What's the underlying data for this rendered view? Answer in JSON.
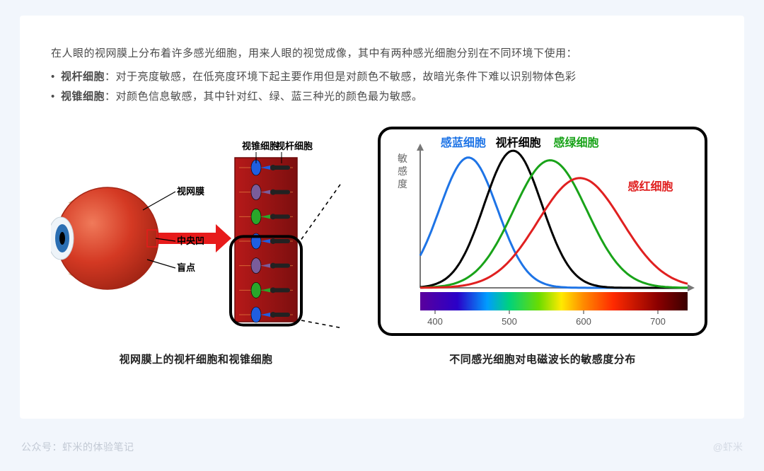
{
  "intro": "在人眼的视网膜上分布着许多感光细胞，用来人眼的视觉成像，其中有两种感光细胞分别在不同环境下使用：",
  "bullets": [
    {
      "name": "视杆细胞",
      "desc": "：对于亮度敏感，在低亮度环境下起主要作用但是对颜色不敏感，故暗光条件下难以识别物体色彩"
    },
    {
      "name": "视锥细胞",
      "desc": "：对颜色信息敏感，其中针对红、绿、蓝三种光的颜色最为敏感。"
    }
  ],
  "eye_diagram": {
    "labels": {
      "cone_cell": "视锥细胞",
      "rod_cell": "视杆细胞",
      "retina": "视网膜",
      "fovea": "中央凹",
      "blind_spot": "盲点"
    },
    "label_fontsize": 13,
    "label_fontweight": 700,
    "eye_colors": {
      "body_fill": "#d43923",
      "body_dark": "#a32515",
      "iris": "#2b6fb3",
      "pupil": "#000000",
      "sclera": "#f5e2c8",
      "sclera_shadow": "#d6c19b"
    },
    "arrow_color": "#e71b1b",
    "retina_strip": {
      "bg": "#b61919",
      "bg2": "#7d0f0f",
      "border": "#6e0b0b",
      "cone_colors": [
        "#1f5ee0",
        "#7a5c9a",
        "#2aa62a"
      ],
      "rod_color": "#222"
    },
    "callout_border": "#000000",
    "callout_border_width": 4,
    "callout_radius": 18
  },
  "sensitivity_chart": {
    "type": "line",
    "panel_border": "#000000",
    "panel_border_width": 4,
    "panel_radius": 18,
    "background": "#ffffff",
    "axis_color": "#777777",
    "axis_width": 2,
    "ylabel": "敏感度",
    "ylabel_fontsize": 14,
    "ylabel_color": "#666666",
    "xlim": [
      380,
      740
    ],
    "xticks": [
      400,
      500,
      600,
      700
    ],
    "xtick_fontsize": 13,
    "xtick_color": "#555555",
    "series_labels": {
      "blue": "感蓝细胞",
      "rod": "视杆细胞",
      "green": "感绿细胞",
      "red": "感红细胞"
    },
    "label_fontsize": 16,
    "label_fontweight": 700,
    "curves": [
      {
        "name": "blue",
        "color": "#1e74e6",
        "peak_x": 445,
        "half_width": 55,
        "amp": 0.95,
        "line_width": 3
      },
      {
        "name": "rod",
        "color": "#000000",
        "peak_x": 505,
        "half_width": 55,
        "amp": 1.0,
        "line_width": 3
      },
      {
        "name": "green",
        "color": "#19a319",
        "peak_x": 555,
        "half_width": 70,
        "amp": 0.93,
        "line_width": 3
      },
      {
        "name": "red",
        "color": "#e02020",
        "peak_x": 595,
        "half_width": 80,
        "amp": 0.8,
        "line_width": 3
      }
    ],
    "spectrum_bar": {
      "height": 26,
      "stops": [
        {
          "nm": 380,
          "color": "#5a009c"
        },
        {
          "nm": 430,
          "color": "#2a00c8"
        },
        {
          "nm": 470,
          "color": "#009cff"
        },
        {
          "nm": 500,
          "color": "#00d27d"
        },
        {
          "nm": 540,
          "color": "#6bdc00"
        },
        {
          "nm": 570,
          "color": "#ffea00"
        },
        {
          "nm": 600,
          "color": "#ff8a00"
        },
        {
          "nm": 640,
          "color": "#ff2a00"
        },
        {
          "nm": 700,
          "color": "#8a0000"
        },
        {
          "nm": 740,
          "color": "#3a0000"
        }
      ]
    }
  },
  "captions": {
    "left": "视网膜上的视杆细胞和视锥细胞",
    "right": "不同感光细胞对电磁波长的敏感度分布"
  },
  "footer": {
    "left_label": "公众号：",
    "left_value": "虾米的体验笔记",
    "right": "@虾米"
  }
}
